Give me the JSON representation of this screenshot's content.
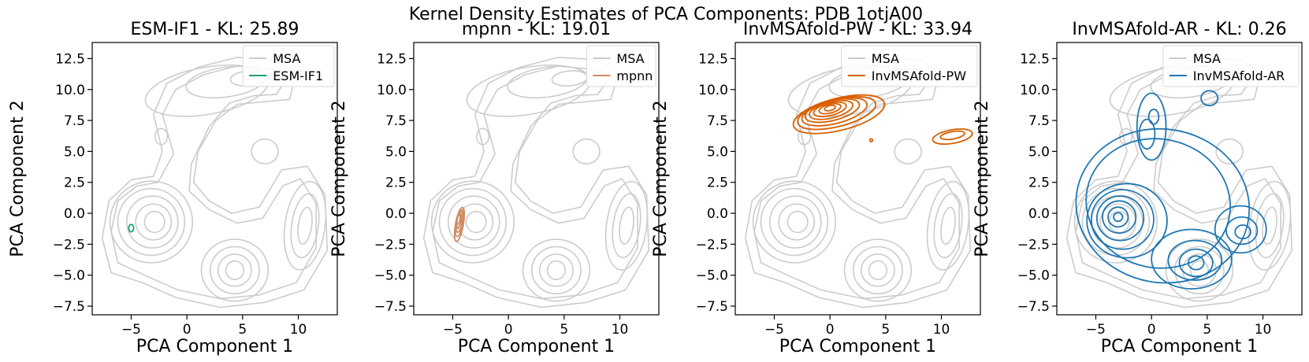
{
  "figure": {
    "suptitle": "Kernel Density Estimates of PCA Components: PDB 1otjA00"
  },
  "chart_data": [
    {
      "type": "kde-contour",
      "title": "ESM-IF1 - KL: 25.89",
      "xlabel": "PCA Component 1",
      "ylabel": "PCA Component 2",
      "xlim": [
        -8.5,
        13.5
      ],
      "ylim": [
        -8.2,
        13.8
      ],
      "xticks": [
        -5,
        0,
        5,
        10
      ],
      "xtick_labels": [
        "−5",
        "0",
        "5",
        "10"
      ],
      "yticks": [
        12.5,
        10.0,
        7.5,
        5.0,
        2.5,
        0.0,
        -2.5,
        -5.0,
        -7.5
      ],
      "ytick_labels": [
        "12.5",
        "10.0",
        "7.5",
        "5.0",
        "2.5",
        "0.0",
        "−2.5",
        "−5.0",
        "−7.5"
      ],
      "legend": [
        "MSA",
        "ESM-IF1"
      ],
      "legend_loc": "top-right",
      "series_color": "#1b9e77",
      "model_contours": [
        {
          "cx": -5.0,
          "cy": -1.2,
          "rx": 0.22,
          "ry": 0.3,
          "rot": 0
        }
      ]
    },
    {
      "type": "kde-contour",
      "title": "mpnn - KL: 19.01",
      "xlabel": "PCA Component 1",
      "ylabel": "PCA Component 2",
      "xlim": [
        -8.5,
        13.5
      ],
      "ylim": [
        -8.2,
        13.8
      ],
      "xticks": [
        -5,
        0,
        5,
        10
      ],
      "xtick_labels": [
        "−5",
        "0",
        "5",
        "10"
      ],
      "yticks": [
        12.5,
        10.0,
        7.5,
        5.0,
        2.5,
        0.0,
        -2.5,
        -5.0,
        -7.5
      ],
      "ytick_labels": [
        "12.5",
        "10.0",
        "7.5",
        "5.0",
        "2.5",
        "0.0",
        "−2.5",
        "−5.0",
        "−7.5"
      ],
      "legend": [
        "MSA",
        "mpnn"
      ],
      "legend_loc": "top-right",
      "series_color": "#d08c60",
      "model_contours": [
        {
          "cx": -4.4,
          "cy": -0.9,
          "rx": 0.35,
          "ry": 1.4,
          "rot": -10
        },
        {
          "cx": -4.4,
          "cy": -0.8,
          "rx": 0.3,
          "ry": 1.1,
          "rot": -10
        },
        {
          "cx": -4.4,
          "cy": -0.7,
          "rx": 0.25,
          "ry": 0.85,
          "rot": -10
        },
        {
          "cx": -4.45,
          "cy": -0.6,
          "rx": 0.2,
          "ry": 0.6,
          "rot": -10
        },
        {
          "cx": -4.5,
          "cy": -0.5,
          "rx": 0.15,
          "ry": 0.4,
          "rot": -10
        }
      ]
    },
    {
      "type": "kde-contour",
      "title": "InvMSAfold-PW - KL: 33.94",
      "xlabel": "PCA Component 1",
      "ylabel": "PCA Component 2",
      "xlim": [
        -8.5,
        13.5
      ],
      "ylim": [
        -8.2,
        13.8
      ],
      "xticks": [
        -5,
        0,
        5,
        10
      ],
      "xtick_labels": [
        "−5",
        "0",
        "5",
        "10"
      ],
      "yticks": [
        12.5,
        10.0,
        7.5,
        5.0,
        2.5,
        0.0,
        -2.5,
        -5.0,
        -7.5
      ],
      "ytick_labels": [
        "12.5",
        "10.0",
        "7.5",
        "5.0",
        "2.5",
        "0.0",
        "−2.5",
        "−5.0",
        "−7.5"
      ],
      "legend": [
        "MSA",
        "InvMSAfold-PW"
      ],
      "legend_loc": "top-right",
      "series_color": "#d95f02",
      "model_contours": [
        {
          "cx": 0.8,
          "cy": 8.0,
          "rx": 4.2,
          "ry": 1.3,
          "rot": 14
        },
        {
          "cx": 0.6,
          "cy": 8.1,
          "rx": 3.6,
          "ry": 1.1,
          "rot": 14
        },
        {
          "cx": 0.4,
          "cy": 8.2,
          "rx": 3.0,
          "ry": 0.95,
          "rot": 14
        },
        {
          "cx": 0.2,
          "cy": 8.3,
          "rx": 2.5,
          "ry": 0.8,
          "rot": 14
        },
        {
          "cx": 0.1,
          "cy": 8.35,
          "rx": 2.0,
          "ry": 0.65,
          "rot": 14
        },
        {
          "cx": 0.0,
          "cy": 8.4,
          "rx": 1.5,
          "ry": 0.5,
          "rot": 14
        },
        {
          "cx": 0.0,
          "cy": 8.45,
          "rx": 1.0,
          "ry": 0.35,
          "rot": 14
        },
        {
          "cx": 0.0,
          "cy": 8.5,
          "rx": 0.5,
          "ry": 0.2,
          "rot": 14
        },
        {
          "cx": 11.0,
          "cy": 6.2,
          "rx": 1.8,
          "ry": 0.55,
          "rot": 10
        },
        {
          "cx": 11.0,
          "cy": 6.3,
          "rx": 1.1,
          "ry": 0.3,
          "rot": 10
        },
        {
          "cx": 3.7,
          "cy": 5.9,
          "rx": 0.12,
          "ry": 0.12,
          "rot": 0
        }
      ]
    },
    {
      "type": "kde-contour",
      "title": "InvMSAfold-AR - KL: 0.26",
      "xlabel": "PCA Component 1",
      "ylabel": "PCA Component 2",
      "xlim": [
        -8.5,
        13.5
      ],
      "ylim": [
        -8.2,
        13.8
      ],
      "xticks": [
        -5,
        0,
        5,
        10
      ],
      "xtick_labels": [
        "−5",
        "0",
        "5",
        "10"
      ],
      "yticks": [
        12.5,
        10.0,
        7.5,
        5.0,
        2.5,
        0.0,
        -2.5,
        -5.0,
        -7.5
      ],
      "ytick_labels": [
        "12.5",
        "10.0",
        "7.5",
        "5.0",
        "2.5",
        "0.0",
        "−2.5",
        "−5.0",
        "−7.5"
      ],
      "legend": [
        "MSA",
        "InvMSAfold-AR"
      ],
      "legend_loc": "top-right",
      "series_color": "#1f77b4",
      "model_contours": [
        {
          "cx": 1.0,
          "cy": 0.6,
          "rx": 7.8,
          "ry": 6.2,
          "rot": -10
        },
        {
          "cx": 0.6,
          "cy": 0.8,
          "rx": 6.5,
          "ry": 5.2,
          "rot": -12
        },
        {
          "cx": -2.2,
          "cy": -0.6,
          "rx": 3.6,
          "ry": 3.0,
          "rot": 0
        },
        {
          "cx": -2.6,
          "cy": -0.5,
          "rx": 2.8,
          "ry": 2.4,
          "rot": 0
        },
        {
          "cx": -2.8,
          "cy": -0.4,
          "rx": 2.1,
          "ry": 1.8,
          "rot": 0
        },
        {
          "cx": -2.9,
          "cy": -0.3,
          "rx": 1.5,
          "ry": 1.3,
          "rot": 0
        },
        {
          "cx": -3.0,
          "cy": -0.3,
          "rx": 0.9,
          "ry": 0.8,
          "rot": 0
        },
        {
          "cx": -3.0,
          "cy": -0.3,
          "rx": 0.4,
          "ry": 0.35,
          "rot": 0
        },
        {
          "cx": 0.0,
          "cy": 7.0,
          "rx": 1.3,
          "ry": 2.7,
          "rot": 0
        },
        {
          "cx": -0.4,
          "cy": 6.4,
          "rx": 0.7,
          "ry": 1.2,
          "rot": 0
        },
        {
          "cx": 0.2,
          "cy": 7.8,
          "rx": 0.45,
          "ry": 0.6,
          "rot": 0
        },
        {
          "cx": 5.2,
          "cy": 9.3,
          "rx": 0.75,
          "ry": 0.6,
          "rot": 0
        },
        {
          "cx": 3.6,
          "cy": -3.7,
          "rx": 3.6,
          "ry": 2.4,
          "rot": 0
        },
        {
          "cx": 3.9,
          "cy": -3.8,
          "rx": 2.4,
          "ry": 1.6,
          "rot": 0
        },
        {
          "cx": 4.0,
          "cy": -4.0,
          "rx": 1.5,
          "ry": 1.1,
          "rot": 0
        },
        {
          "cx": 4.0,
          "cy": -4.0,
          "rx": 0.7,
          "ry": 0.55,
          "rot": 0
        },
        {
          "cx": 8.0,
          "cy": -1.3,
          "rx": 2.3,
          "ry": 1.9,
          "rot": 0
        },
        {
          "cx": 8.1,
          "cy": -1.4,
          "rx": 1.4,
          "ry": 1.1,
          "rot": 0
        },
        {
          "cx": 8.2,
          "cy": -1.5,
          "rx": 0.7,
          "ry": 0.55,
          "rot": 0
        }
      ]
    }
  ],
  "msa_reference": {
    "color": "#cccccc",
    "outer_path": [
      [
        -6.8,
        -4.8
      ],
      [
        -7.6,
        -2.0
      ],
      [
        -7.0,
        1.0
      ],
      [
        -5.0,
        2.7
      ],
      [
        -3.0,
        3.0
      ],
      [
        -2.2,
        5.0
      ],
      [
        -3.0,
        8.0
      ],
      [
        -1.8,
        10.5
      ],
      [
        1.0,
        11.8
      ],
      [
        4.5,
        12.6
      ],
      [
        8.2,
        12.4
      ],
      [
        9.8,
        11.2
      ],
      [
        9.2,
        9.2
      ],
      [
        6.8,
        9.0
      ],
      [
        4.5,
        8.8
      ],
      [
        2.6,
        7.5
      ],
      [
        1.0,
        5.0
      ],
      [
        0.6,
        2.5
      ],
      [
        2.0,
        1.0
      ],
      [
        4.0,
        0.0
      ],
      [
        6.5,
        0.5
      ],
      [
        8.5,
        3.5
      ],
      [
        10.8,
        3.8
      ],
      [
        12.4,
        1.5
      ],
      [
        12.6,
        -3.0
      ],
      [
        10.5,
        -6.2
      ],
      [
        7.0,
        -7.2
      ],
      [
        3.0,
        -7.6
      ],
      [
        -1.0,
        -6.8
      ],
      [
        -4.0,
        -5.6
      ]
    ],
    "mid_path": [
      [
        -6.2,
        -4.0
      ],
      [
        -6.8,
        -1.5
      ],
      [
        -6.2,
        1.0
      ],
      [
        -4.5,
        2.2
      ],
      [
        -2.6,
        2.5
      ],
      [
        -1.2,
        4.8
      ],
      [
        -2.2,
        8.0
      ],
      [
        -1.0,
        10.0
      ],
      [
        1.5,
        11.2
      ],
      [
        4.5,
        11.9
      ],
      [
        7.8,
        11.6
      ],
      [
        8.8,
        10.6
      ],
      [
        8.0,
        9.6
      ],
      [
        6.0,
        9.5
      ],
      [
        3.8,
        8.9
      ],
      [
        2.0,
        7.0
      ],
      [
        0.4,
        4.0
      ],
      [
        0.2,
        1.8
      ],
      [
        2.0,
        0.3
      ],
      [
        4.5,
        -0.8
      ],
      [
        6.8,
        -0.4
      ],
      [
        8.6,
        2.2
      ],
      [
        10.2,
        2.8
      ],
      [
        11.6,
        0.8
      ],
      [
        11.6,
        -2.8
      ],
      [
        9.8,
        -5.6
      ],
      [
        6.5,
        -6.6
      ],
      [
        3.0,
        -6.9
      ],
      [
        -0.8,
        -6.2
      ],
      [
        -3.8,
        -5.0
      ]
    ],
    "blobs": [
      {
        "cx": 1.8,
        "cy": 9.9,
        "rx": 5.6,
        "ry": 1.9,
        "rot": 10
      },
      {
        "cx": 3.5,
        "cy": 10.6,
        "rx": 3.6,
        "ry": 1.2,
        "rot": 8
      },
      {
        "cx": 5.5,
        "cy": 10.9,
        "rx": 1.6,
        "ry": 0.6,
        "rot": 5
      },
      {
        "cx": -2.3,
        "cy": 6.2,
        "rx": 0.55,
        "ry": 0.65,
        "rot": 0
      },
      {
        "cx": 7.0,
        "cy": 5.0,
        "rx": 1.2,
        "ry": 1.0,
        "rot": 0
      },
      {
        "cx": -3.2,
        "cy": -0.7,
        "rx": 3.7,
        "ry": 3.3,
        "rot": 0
      },
      {
        "cx": -3.2,
        "cy": -0.7,
        "rx": 3.0,
        "ry": 2.7,
        "rot": 0
      },
      {
        "cx": -3.1,
        "cy": -0.7,
        "rx": 2.3,
        "ry": 2.1,
        "rot": 0
      },
      {
        "cx": -3.0,
        "cy": -0.7,
        "rx": 1.6,
        "ry": 1.45,
        "rot": 0
      },
      {
        "cx": -2.9,
        "cy": -0.7,
        "rx": 0.9,
        "ry": 0.85,
        "rot": 0
      },
      {
        "cx": 4.3,
        "cy": -4.6,
        "rx": 3.0,
        "ry": 2.5,
        "rot": 0
      },
      {
        "cx": 4.3,
        "cy": -4.6,
        "rx": 2.2,
        "ry": 1.9,
        "rot": 0
      },
      {
        "cx": 4.3,
        "cy": -4.6,
        "rx": 1.5,
        "ry": 1.3,
        "rot": 0
      },
      {
        "cx": 4.3,
        "cy": -4.6,
        "rx": 0.8,
        "ry": 0.75,
        "rot": 0
      },
      {
        "cx": 10.6,
        "cy": -1.0,
        "rx": 1.8,
        "ry": 3.6,
        "rot": -8
      },
      {
        "cx": 10.6,
        "cy": -1.0,
        "rx": 1.2,
        "ry": 2.6,
        "rot": -8
      },
      {
        "cx": 10.6,
        "cy": -1.0,
        "rx": 0.6,
        "ry": 1.5,
        "rot": -8
      }
    ]
  }
}
